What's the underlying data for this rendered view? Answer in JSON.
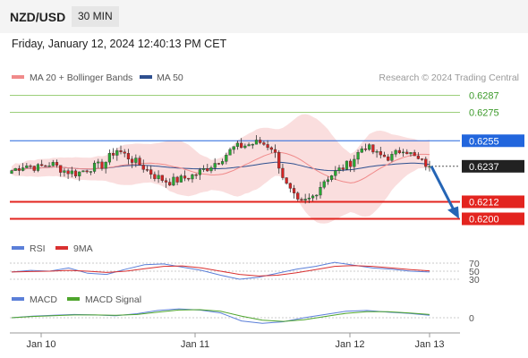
{
  "header": {
    "pair": "NZD/USD",
    "timeframe": "30 MIN",
    "datetime": "Friday, January 12, 2024 12:40:13 PM CET"
  },
  "legend": {
    "ma20": "MA 20 + Bollinger Bands",
    "ma50": "MA 50",
    "copyright": "Research © 2024 Trading Central"
  },
  "rsi_legend": {
    "rsi": "RSI",
    "ma": "9MA"
  },
  "macd_legend": {
    "macd": "MACD",
    "signal": "MACD Signal"
  },
  "colors": {
    "candle_up": "#27a832",
    "candle_down": "#d42323",
    "ma20": "#f08a8a",
    "bollinger_fill": "#fadada",
    "ma50": "#2e4f8f",
    "resistance_green": "#9ccf7a",
    "pivot_blue": "#2266dd",
    "support_red": "#e3241f",
    "arrow": "#2565b5",
    "rsi": "#5b7fd8",
    "rsi_ma": "#d93030",
    "macd": "#5b7fd8",
    "macd_signal": "#4ea52c"
  },
  "chart_data": [
    {
      "type": "candlestick",
      "title": "NZD/USD 30 MIN",
      "x_ticks": [
        "Jan 10",
        "Jan 11",
        "Jan 12",
        "Jan 13"
      ],
      "ylim": [
        0.6195,
        0.6292
      ],
      "levels": [
        {
          "value": 0.6287,
          "label": "0.6287",
          "style": "resistance"
        },
        {
          "value": 0.6275,
          "label": "0.6275",
          "style": "resistance"
        },
        {
          "value": 0.6255,
          "label": "0.6255",
          "style": "pivot"
        },
        {
          "value": 0.6237,
          "label": "0.6237",
          "style": "current"
        },
        {
          "value": 0.6212,
          "label": "0.6212",
          "style": "support"
        },
        {
          "value": 0.62,
          "label": "0.6200",
          "style": "support"
        }
      ],
      "forecast": {
        "from": 0.6237,
        "to": 0.62,
        "direction": "down"
      },
      "close_anchors": [
        0.6234,
        0.6238,
        0.6236,
        0.6239,
        0.6234,
        0.6232,
        0.6236,
        0.6238,
        0.6249,
        0.6243,
        0.6237,
        0.623,
        0.6226,
        0.6228,
        0.6231,
        0.6236,
        0.6242,
        0.625,
        0.6252,
        0.6254,
        0.625,
        0.6224,
        0.621,
        0.6215,
        0.6228,
        0.6234,
        0.624,
        0.6252,
        0.6245,
        0.6243,
        0.625,
        0.6242,
        0.6237
      ],
      "legend": [
        "MA 20 + Bollinger Bands",
        "MA 50"
      ]
    },
    {
      "type": "line",
      "title": "RSI",
      "y_ticks": [
        70,
        50,
        30
      ],
      "series": [
        {
          "name": "RSI",
          "values": [
            48,
            52,
            50,
            58,
            45,
            42,
            55,
            66,
            68,
            60,
            52,
            40,
            30,
            35,
            45,
            55,
            62,
            72,
            65,
            58,
            55,
            50,
            48
          ]
        },
        {
          "name": "9MA",
          "values": [
            48,
            49,
            50,
            52,
            50,
            47,
            50,
            56,
            62,
            63,
            58,
            50,
            42,
            38,
            40,
            46,
            54,
            62,
            64,
            62,
            58,
            54,
            51
          ]
        }
      ]
    },
    {
      "type": "line",
      "title": "MACD",
      "y_ticks": [
        0
      ],
      "series": [
        {
          "name": "MACD",
          "values": [
            0.0,
            0.4,
            0.6,
            0.8,
            0.7,
            0.5,
            1.0,
            1.8,
            2.2,
            1.9,
            1.2,
            -0.8,
            -1.4,
            -1.0,
            0.0,
            0.8,
            1.6,
            1.8,
            1.4,
            1.1,
            0.6
          ]
        },
        {
          "name": "MACD Signal",
          "values": [
            0.0,
            0.3,
            0.5,
            0.7,
            0.7,
            0.6,
            0.8,
            1.4,
            1.9,
            2.0,
            1.6,
            0.4,
            -0.6,
            -0.9,
            -0.5,
            0.3,
            1.1,
            1.5,
            1.5,
            1.2,
            0.8
          ]
        }
      ]
    }
  ]
}
